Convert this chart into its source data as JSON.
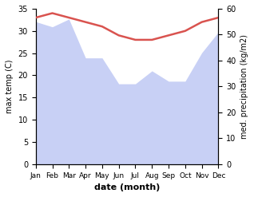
{
  "months": [
    "Jan",
    "Feb",
    "Mar",
    "Apr",
    "May",
    "Jun",
    "Jul",
    "Aug",
    "Sep",
    "Oct",
    "Nov",
    "Dec"
  ],
  "temperature": [
    33,
    34,
    33,
    32,
    31,
    29,
    28,
    28,
    29,
    30,
    32,
    33
  ],
  "precipitation": [
    55,
    53,
    56,
    41,
    41,
    31,
    31,
    36,
    32,
    32,
    43,
    51
  ],
  "temp_color": "#d9534f",
  "precip_fill_color": "#c8d0f5",
  "xlabel": "date (month)",
  "ylabel_left": "max temp (C)",
  "ylabel_right": "med. precipitation (kg/m2)",
  "ylim_left": [
    0,
    35
  ],
  "ylim_right": [
    0,
    60
  ],
  "yticks_left": [
    0,
    5,
    10,
    15,
    20,
    25,
    30,
    35
  ],
  "yticks_right": [
    0,
    10,
    20,
    30,
    40,
    50,
    60
  ],
  "temp_linewidth": 1.8
}
